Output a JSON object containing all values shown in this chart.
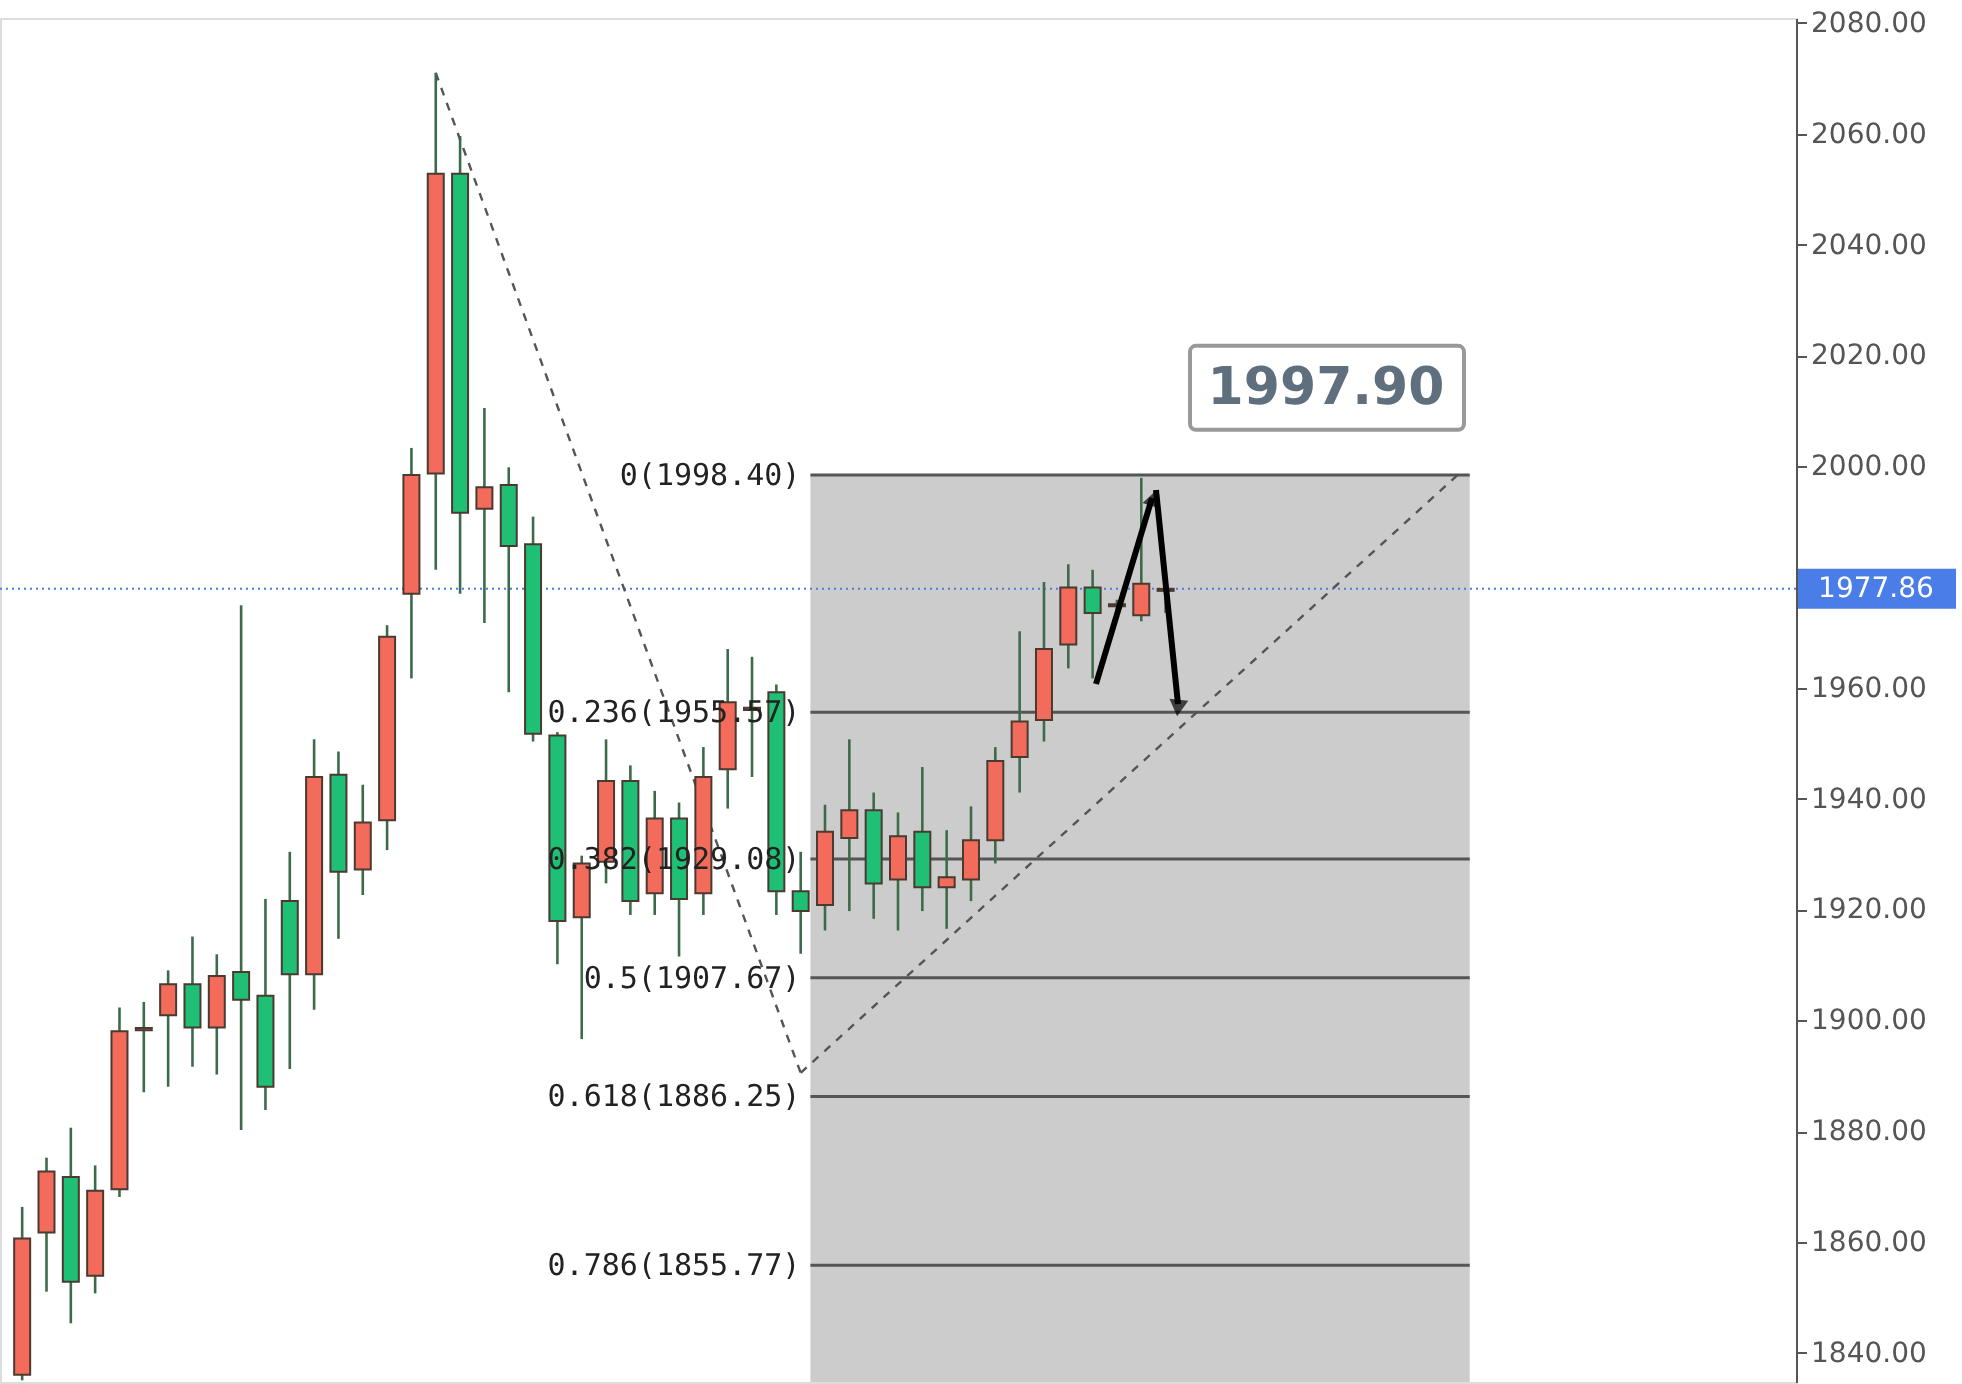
{
  "chart_data": {
    "type": "candlestick",
    "categories": [
      null,
      null,
      null,
      null,
      null,
      null,
      null,
      null,
      null,
      null,
      null,
      null,
      null,
      null,
      null,
      null,
      null,
      null,
      null,
      null,
      null,
      null,
      null,
      null,
      null,
      null,
      null,
      null,
      null,
      null,
      null,
      null,
      null,
      null,
      null,
      null,
      null,
      null,
      null,
      null,
      null,
      null,
      null,
      null,
      null,
      null,
      null,
      null,
      null,
      null,
      null,
      null,
      null,
      null,
      null,
      null,
      null,
      null,
      null,
      null,
      null,
      null,
      null,
      null,
      null,
      null,
      null,
      null,
      null,
      null,
      null,
      null,
      null
    ],
    "ohlc": [
      [
        1836,
        1866.3,
        1835,
        1860.6
      ],
      [
        1861.7,
        1875.2,
        1851.0,
        1872.7
      ],
      [
        1871.7,
        1880.6,
        1845.3,
        1852.8
      ],
      [
        1853.9,
        1873.8,
        1850.7,
        1869.2
      ],
      [
        1869.5,
        1902.3,
        1868.1,
        1898.0
      ],
      [
        1898.2,
        1903.3,
        1887.0,
        1898.6
      ],
      [
        1900.9,
        1909.0,
        1888.0,
        1906.5
      ],
      [
        1906.5,
        1915.1,
        1891.6,
        1898.7
      ],
      [
        1898.7,
        1911.9,
        1890.2,
        1908.0
      ],
      [
        1908.7,
        1974.9,
        1880.2,
        1903.7
      ],
      [
        1904.4,
        1921.9,
        1883.8,
        1888.0
      ],
      [
        1921.5,
        1930.4,
        1891.2,
        1908.3
      ],
      [
        1908.3,
        1950.7,
        1901.9,
        1943.9
      ],
      [
        1944.3,
        1948.5,
        1914.7,
        1926.8
      ],
      [
        1927.2,
        1942.5,
        1922.6,
        1935.7
      ],
      [
        1936.1,
        1971.3,
        1930.7,
        1969.2
      ],
      [
        1977.0,
        2003.3,
        1961.7,
        1998.4
      ],
      [
        1998.7,
        2071.0,
        1981.3,
        2052.8
      ],
      [
        2052.8,
        2059.6,
        1977.0,
        1991.6
      ],
      [
        1992.3,
        2010.5,
        1971.7,
        1996.2
      ],
      [
        1996.6,
        1999.8,
        1959.2,
        1985.6
      ],
      [
        1985.9,
        1990.9,
        1950.3,
        1951.7
      ],
      [
        1951.4,
        1952.0,
        1910.1,
        1917.9
      ],
      [
        1918.6,
        1929.7,
        1896.6,
        1928.3
      ],
      [
        1928.6,
        1950.7,
        1924.7,
        1943.2
      ],
      [
        1943.2,
        1946.0,
        1919.0,
        1921.5
      ],
      [
        1922.9,
        1941.4,
        1919.0,
        1936.4
      ],
      [
        1936.4,
        1939.3,
        1911.5,
        1921.9
      ],
      [
        1922.9,
        1949.3,
        1919.0,
        1943.9
      ],
      [
        1945.3,
        1967.0,
        1938.2,
        1957.4
      ],
      [
        1956.0,
        1965.6,
        1943.9,
        1956.4
      ],
      [
        1959.2,
        1960.6,
        1919.0,
        1923.3
      ],
      [
        1923.3,
        1930.4,
        1912.0,
        1919.7
      ],
      [
        1920.8,
        1938.9,
        1916.2,
        1934.0
      ],
      [
        1932.9,
        1950.7,
        1919.7,
        1937.9
      ],
      [
        1937.9,
        1941.1,
        1918.3,
        1924.7
      ],
      [
        1925.4,
        1937.5,
        1916.2,
        1933.2
      ],
      [
        1934.0,
        1945.7,
        1919.7,
        1924.0
      ],
      [
        1924.0,
        1934.3,
        1916.5,
        1925.8
      ],
      [
        1925.4,
        1938.6,
        1921.5,
        1932.5
      ],
      [
        1932.5,
        1949.3,
        1928.3,
        1946.8
      ],
      [
        1947.5,
        1970.2,
        1941.1,
        1953.9
      ],
      [
        1954.2,
        1979.1,
        1950.3,
        1967.0
      ],
      [
        1967.8,
        1982.3,
        1963.5,
        1978.1
      ],
      [
        1978.1,
        1981.3,
        1961.7,
        1973.5
      ],
      [
        1974.7,
        1975.9,
        1973.9,
        1975.1
      ],
      [
        1973.1,
        1997.9,
        1972.0,
        1978.8
      ],
      [
        1977.5,
        1982.0,
        1973.5,
        1977.86
      ],
      null,
      null,
      null,
      null,
      null,
      null,
      null,
      null,
      null,
      null,
      null,
      null,
      null,
      null,
      null,
      null,
      null,
      null,
      null,
      null,
      null,
      null,
      null,
      null,
      null
    ],
    "colors": [
      "#f26b5b",
      "#f26b5b",
      "#1fbf75",
      "#f26b5b",
      "#f26b5b",
      "#f26b5b",
      "#f26b5b",
      "#1fbf75",
      "#f26b5b",
      "#1fbf75",
      "#1fbf75",
      "#1fbf75",
      "#f26b5b",
      "#1fbf75",
      "#f26b5b",
      "#f26b5b",
      "#f26b5b",
      "#f26b5b",
      "#1fbf75",
      "#f26b5b",
      "#1fbf75",
      "#1fbf75",
      "#1fbf75",
      "#f26b5b",
      "#f26b5b",
      "#1fbf75",
      "#f26b5b",
      "#1fbf75",
      "#f26b5b",
      "#f26b5b",
      "#f26b5b",
      "#1fbf75",
      "#1fbf75",
      "#f26b5b",
      "#f26b5b",
      "#1fbf75",
      "#f26b5b",
      "#1fbf75",
      "#f26b5b",
      "#f26b5b",
      "#f26b5b",
      "#f26b5b",
      "#f26b5b",
      "#f26b5b",
      "#1fbf75",
      "#f26b5b",
      "#f26b5b",
      "#f26b5b",
      null,
      null,
      null,
      null,
      null,
      null,
      null,
      null,
      null,
      null,
      null,
      null,
      null,
      null,
      null,
      null,
      null,
      null,
      null,
      null,
      null,
      null,
      null,
      null,
      null
    ],
    "series": [
      {
        "type": "line",
        "values": [
          null,
          null,
          null,
          null,
          null,
          null,
          null,
          null,
          null,
          null,
          null,
          null,
          null,
          null,
          null,
          null,
          null,
          2071.0,
          null,
          null,
          null,
          null,
          null,
          null,
          null,
          null,
          null,
          null,
          null,
          null,
          null,
          null,
          1890.5,
          null,
          null,
          null,
          null,
          null,
          null,
          null,
          null,
          null,
          null,
          null,
          null,
          null,
          null,
          null,
          null,
          null,
          null,
          null,
          null,
          null,
          null,
          null,
          null,
          null,
          null,
          null,
          null,
          null,
          null,
          null,
          null,
          null,
          null,
          null,
          null,
          null,
          null,
          null,
          null
        ],
        "color": "#555555",
        "line_style": "dashed"
      },
      {
        "type": "line",
        "values": [
          null,
          null,
          null,
          null,
          null,
          null,
          null,
          null,
          null,
          null,
          null,
          null,
          null,
          null,
          null,
          null,
          null,
          null,
          null,
          null,
          null,
          null,
          null,
          null,
          null,
          null,
          null,
          null,
          null,
          null,
          null,
          null,
          1890.5,
          null,
          null,
          null,
          null,
          null,
          null,
          null,
          null,
          null,
          null,
          null,
          null,
          null,
          null,
          null,
          null,
          null,
          null,
          null,
          null,
          null,
          null,
          null,
          null,
          null,
          null,
          1998.4,
          null,
          null,
          null,
          null,
          null,
          null,
          null,
          null,
          null,
          null,
          null,
          null,
          null
        ],
        "color": "#555555",
        "line_style": "dashed"
      }
    ],
    "ylim": [
      1834.7,
      2080.9
    ],
    "yticks": [
      {
        "value": 1840,
        "label": "1840.00"
      },
      {
        "value": 1860,
        "label": "1860.00"
      },
      {
        "value": 1880,
        "label": "1880.00"
      },
      {
        "value": 1900,
        "label": "1900.00"
      },
      {
        "value": 1920,
        "label": "1920.00"
      },
      {
        "value": 1940,
        "label": "1940.00"
      },
      {
        "value": 1960,
        "label": "1960.00"
      },
      {
        "value": 1980,
        "label": null
      },
      {
        "value": 2000,
        "label": "2000.00"
      },
      {
        "value": 2020,
        "label": "2020.00"
      },
      {
        "value": 2040,
        "label": "2040.00"
      },
      {
        "value": 2060,
        "label": "2060.00"
      },
      {
        "value": 2080,
        "label": "2080.00"
      }
    ],
    "bands": [
      {
        "axis": "y",
        "from": 1834.7,
        "to": 1998.4,
        "color": "#cccccc"
      }
    ],
    "ref_lines": [
      {
        "axis": "y",
        "value": 1998.4,
        "label": "0(1998.40)",
        "color": "#555555",
        "line_style": "solid"
      },
      {
        "axis": "y",
        "value": 1955.57,
        "label": "0.236(1955.57)",
        "color": "#555555",
        "line_style": "solid"
      },
      {
        "axis": "y",
        "value": 1929.08,
        "label": "0.382(1929.08)",
        "color": "#555555",
        "line_style": "solid"
      },
      {
        "axis": "y",
        "value": 1907.67,
        "label": "0.5(1907.67)",
        "color": "#555555",
        "line_style": "solid"
      },
      {
        "axis": "y",
        "value": 1886.25,
        "label": "0.618(1886.25)",
        "color": "#555555",
        "line_style": "solid"
      },
      {
        "axis": "y",
        "value": 1855.77,
        "label": "0.786(1855.77)",
        "color": "#555555",
        "line_style": "solid"
      },
      {
        "axis": "y",
        "value": 1977.86,
        "label": "1977.86",
        "color": "#4a7de8",
        "line_style": "dotted"
      }
    ],
    "annotations": [
      {
        "text": "1997.90",
        "y": 1997.9
      }
    ],
    "grid": false
  }
}
